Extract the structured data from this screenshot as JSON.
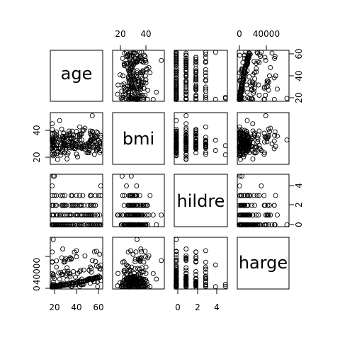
{
  "chart_data": {
    "type": "scatter",
    "subtype": "pairs-matrix",
    "variables": [
      "age",
      "bmi",
      "children",
      "charges"
    ],
    "diagonal_labels": [
      "age",
      "bmi",
      "hildre",
      "harge"
    ],
    "axes": {
      "age": {
        "range": [
          18,
          64
        ],
        "ticks": [
          20,
          40,
          60
        ]
      },
      "bmi": {
        "range": [
          15,
          54
        ],
        "ticks": [
          20,
          40
        ]
      },
      "children": {
        "range": [
          0,
          5
        ],
        "ticks": [
          0,
          2,
          4
        ]
      },
      "charges": {
        "range": [
          1100,
          64000
        ],
        "ticks": [
          0,
          40000
        ]
      }
    },
    "marker": "open-circle",
    "grid": false,
    "sample_points": {
      "age": [
        19,
        18,
        28,
        33,
        32,
        31,
        46,
        37,
        37,
        60,
        25,
        62,
        23,
        56,
        27,
        19,
        52,
        23,
        56,
        30,
        60,
        30,
        18,
        34,
        37,
        59,
        63,
        55,
        23,
        31,
        22,
        18,
        19,
        63,
        28,
        19,
        62,
        26,
        35,
        60,
        24,
        31,
        41,
        37,
        38,
        55,
        18,
        28,
        60,
        36,
        18,
        21,
        48,
        36,
        40,
        58,
        58,
        18,
        53,
        34,
        43,
        25,
        64,
        28,
        20,
        19,
        61,
        40,
        40,
        28,
        27,
        31,
        53,
        58,
        44,
        57,
        29,
        21,
        22,
        41,
        31,
        45,
        22,
        48,
        37,
        45,
        57,
        56,
        46,
        55,
        21,
        53,
        59,
        35,
        64,
        28,
        54,
        55,
        56,
        38,
        41,
        30,
        18,
        61,
        34,
        20,
        19,
        26,
        29,
        63,
        54,
        55,
        37,
        21,
        52,
        60,
        58,
        29,
        49,
        37,
        44,
        18,
        20,
        44,
        47,
        26,
        19,
        52,
        32,
        38,
        59,
        61,
        53,
        19,
        20,
        22,
        19,
        22,
        54,
        22,
        34,
        26,
        34,
        29,
        30,
        29,
        46,
        51,
        53,
        19,
        35,
        48,
        32,
        42,
        40,
        44,
        48,
        18,
        30,
        50,
        42,
        18,
        54,
        32,
        37,
        47,
        20,
        32,
        19,
        27,
        63,
        49,
        18,
        35,
        24,
        63,
        38,
        54,
        46,
        41,
        58,
        18,
        22,
        44,
        44,
        36,
        26,
        30,
        41,
        29,
        61,
        36,
        25,
        56,
        18,
        19,
        39,
        45,
        51,
        64
      ],
      "bmi": [
        27.9,
        33.8,
        33.0,
        22.7,
        28.9,
        25.7,
        33.4,
        27.7,
        29.8,
        25.8,
        26.2,
        26.3,
        34.4,
        39.8,
        42.1,
        24.6,
        30.8,
        23.8,
        40.3,
        35.3,
        36.0,
        32.4,
        34.1,
        31.9,
        28.0,
        27.7,
        23.1,
        32.8,
        17.4,
        36.3,
        35.6,
        26.3,
        28.6,
        28.3,
        36.4,
        20.4,
        32.9,
        20.8,
        36.7,
        39.9,
        26.6,
        36.6,
        21.8,
        30.8,
        37.1,
        37.3,
        38.7,
        34.8,
        24.5,
        35.2,
        35.6,
        33.6,
        28.0,
        34.4,
        28.7,
        37.0,
        31.8,
        31.7,
        22.9,
        37.3,
        27.4,
        33.7,
        24.7,
        25.9,
        22.4,
        28.9,
        39.1,
        26.3,
        36.2,
        24.0,
        24.8,
        28.5,
        28.1,
        32.0,
        27.4,
        34.0,
        29.6,
        35.5,
        39.8,
        33.0,
        26.9,
        38.3,
        37.6,
        41.2,
        31.2,
        27.2,
        27.7,
        27.0,
        38.1,
        30.7,
        30.3,
        25.5,
        36.1,
        34.5,
        35.5,
        36.0,
        31.5,
        32.3,
        37.0,
        30.9,
        28.1,
        30.6,
        21.6,
        29.1,
        27.0,
        21.2,
        33.2,
        23.1,
        34.2,
        31.0,
        27.6,
        33.9,
        30.9,
        26.6,
        23.2,
        30.3,
        34.8,
        28.7,
        25.6,
        28.5,
        36.2,
        33.0,
        28.5,
        37.4,
        30.2,
        26.6,
        28.0,
        29.0,
        17.8,
        34.8,
        35.9,
        27.4,
        24.6,
        34.1,
        38.8,
        29.0,
        31.3,
        22.0,
        40.6,
        26.4,
        40.6,
        29.2,
        28.9,
        38.8,
        29.3,
        30.6,
        26.4,
        27.4,
        30.6,
        27.5,
        38.8,
        26.6,
        37.3,
        19.5,
        30.4,
        38.0,
        28.9,
        37.6,
        28.6,
        29.5,
        31.1,
        27.0,
        38.5,
        21.1,
        40.5,
        41.4,
        31.9,
        34.6,
        29.8,
        30.5,
        30.1,
        42.9,
        46.5,
        31.4,
        35.7,
        31.8,
        26.9,
        33.0,
        28.3,
        32.4,
        21.5,
        32.4,
        28.9,
        33.3,
        43.9,
        31.5,
        31.2,
        22.8,
        40.2,
        38.8,
        25.7,
        26.7,
        49.1,
        53.1,
        41.9,
        33.3,
        26.2,
        30.2,
        22.9,
        37.1
      ],
      "children": [
        0,
        1,
        3,
        0,
        0,
        0,
        1,
        3,
        2,
        0,
        0,
        0,
        0,
        0,
        0,
        1,
        1,
        0,
        0,
        0,
        0,
        1,
        0,
        1,
        2,
        3,
        0,
        2,
        1,
        2,
        0,
        0,
        5,
        0,
        1,
        0,
        3,
        0,
        1,
        0,
        0,
        2,
        1,
        2,
        0,
        0,
        2,
        0,
        0,
        1,
        0,
        2,
        0,
        1,
        2,
        0,
        0,
        0,
        0,
        0,
        0,
        1,
        4,
        2,
        0,
        1,
        1,
        1,
        0,
        0,
        0,
        0,
        1,
        1,
        0,
        2,
        0,
        0,
        0,
        1,
        0,
        2,
        0,
        2,
        2,
        1,
        2,
        0,
        0,
        1,
        0,
        1,
        2,
        0,
        3,
        2,
        3,
        3,
        1,
        0,
        3,
        0,
        3,
        0,
        0,
        5,
        0,
        3,
        0,
        1,
        2,
        0,
        2,
        0,
        0,
        0,
        1,
        0,
        1,
        0,
        2,
        4,
        0,
        0,
        3,
        0,
        0,
        2,
        1,
        0,
        2,
        1,
        1,
        1,
        0,
        2,
        0,
        1,
        0,
        1,
        0,
        1,
        0,
        2,
        3,
        2,
        2,
        1,
        0,
        0,
        2,
        0,
        1,
        1,
        0,
        2,
        0,
        1,
        0,
        1,
        1,
        0,
        2,
        0,
        0,
        1,
        3,
        0,
        2,
        2,
        0,
        1,
        1,
        1,
        0,
        0,
        2,
        1,
        0,
        0,
        1,
        2,
        3,
        0,
        3,
        0,
        1,
        2,
        2,
        0,
        1,
        3,
        0,
        1,
        2,
        0,
        2,
        0,
        0,
        0
      ],
      "charges": [
        16885,
        1726,
        4449,
        21984,
        3867,
        3757,
        8241,
        7282,
        6406,
        28923,
        2721,
        27809,
        1827,
        11091,
        39612,
        1837,
        10797,
        2395,
        10602,
        36837,
        13229,
        4150,
        1137,
        37702,
        6204,
        14001,
        14451,
        12269,
        2775,
        38711,
        35586,
        2198,
        4688,
        13770,
        51195,
        1626,
        15612,
        2302,
        39775,
        48173,
        3046,
        4949,
        6273,
        6314,
        6080,
        20630,
        3394,
        3556,
        12630,
        38709,
        2211,
        3579,
        23568,
        37743,
        8059,
        47497,
        13607,
        34304,
        23244,
        5989,
        8606,
        4504,
        30166,
        4133,
        1744,
        14711,
        1743,
        14235,
        6389,
        5920,
        17663,
        16577,
        11744,
        11770,
        7037,
        11741,
        3947,
        1533,
        2755,
        6571,
        4441,
        7936,
        2689,
        8219,
        6445,
        23408,
        12475,
        10579,
        11743,
        12269,
        1977,
        11073,
        12591,
        18210,
        24671,
        17560,
        12105,
        11882,
        11569,
        5877,
        48970,
        3689,
        33751,
        14001,
        3756,
        2127,
        1632,
        20420,
        3260,
        14395,
        11763,
        25678,
        6653,
        1665,
        10434,
        13205,
        12222,
        4185,
        9617,
        4518,
        7789,
        1632,
        2137,
        21196,
        8606,
        3757,
        17929,
        11674,
        19040,
        6663,
        34838,
        12950,
        11273,
        1711,
        1798,
        2731,
        1635,
        2730,
        27322,
        2352,
        19107,
        2803,
        6079,
        33908,
        3906,
        4453,
        8280,
        10797,
        12032,
        1727,
        5354,
        8413,
        26467,
        6849,
        4152,
        7914,
        4746,
        1728,
        3756,
        9095,
        19023,
        1131,
        11396,
        4466,
        2198,
        4686,
        12268,
        10594,
        7881,
        3761,
        44202,
        42112,
        18903,
        15170,
        19798,
        25309,
        21472,
        5920,
        4466,
        5969,
        8059,
        47291,
        27322,
        9432,
        1720,
        6067,
        4992,
        34439,
        40904,
        21232,
        8027,
        2103,
        11658,
        36021,
        1163,
        63770,
        47055,
        4350,
        9411,
        9566,
        18957,
        24916
      ]
    }
  }
}
